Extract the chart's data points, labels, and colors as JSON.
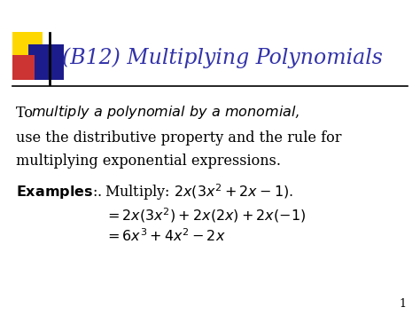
{
  "title": "(B12) Multiplying Polynomials",
  "title_color": "#3333AA",
  "title_fontsize": 17,
  "bg_color": "#FFFFFF",
  "page_number": "1",
  "body_fontsize": 11.5,
  "examples_fontsize": 11.5,
  "line1_normal": "To ",
  "line1_italic": "multiply a polynomial by a monomial",
  "line1_end": ",",
  "line2": "use the distributive property and the rule for",
  "line3": "multiplying exponential expressions.",
  "examples_bold": "Examples",
  "examples_suffix": ":.",
  "example1": "  Multiply: $2x(3x^2 + 2x - 1).$",
  "example2_indent": "$= 2x(3x^2) + 2x(2x) + 2x(-1)$",
  "example3_indent": "$= 6x^3 + 4x^2 - 2x$",
  "yellow_color": "#FFD700",
  "blue_color": "#1C1C8C",
  "red_color": "#CC3333",
  "line_color": "#000000"
}
